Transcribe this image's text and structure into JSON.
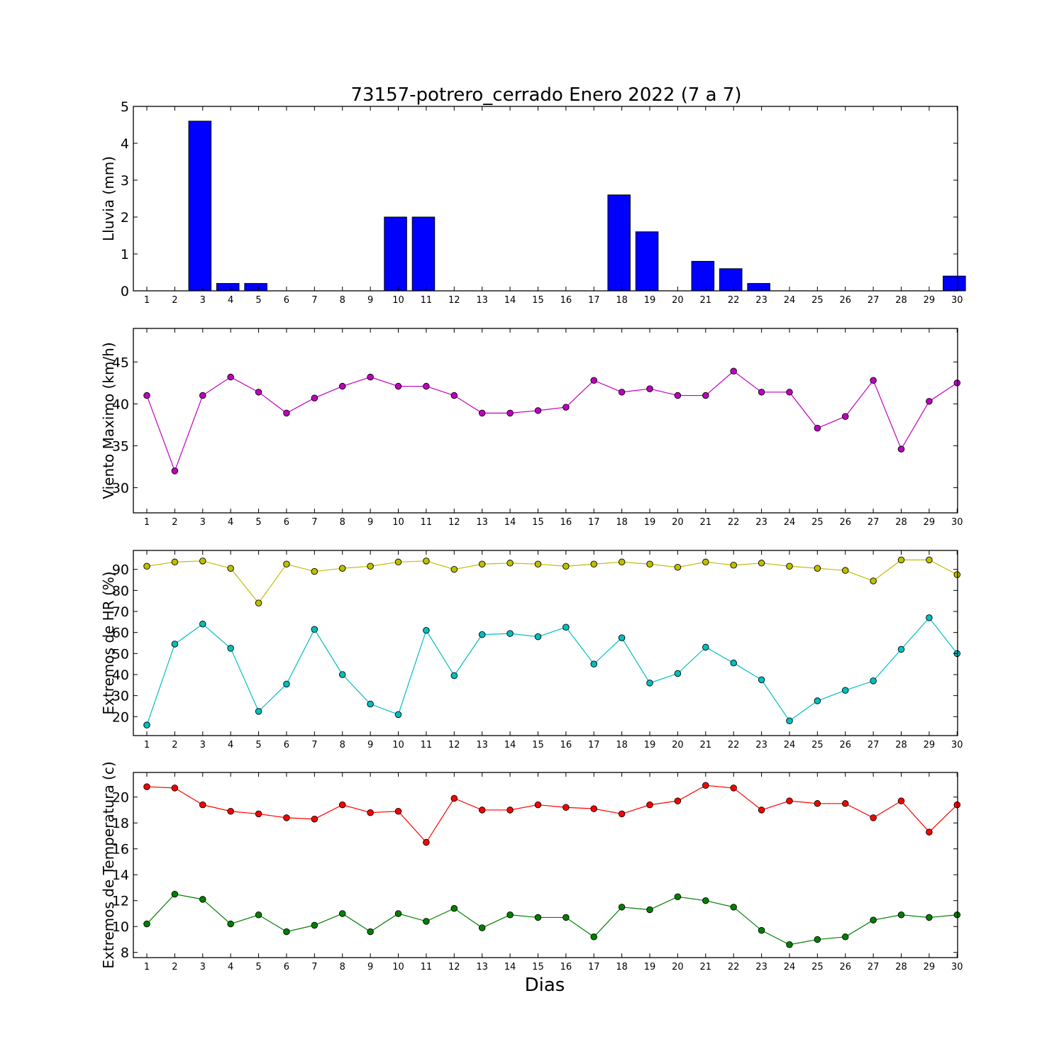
{
  "figure": {
    "title": "73157-potrero_cerrado Enero 2022  (7 a 7)",
    "xlabel": "Dias"
  },
  "chart_data": [
    {
      "type": "bar",
      "ylabel": "Lluvia (mm)",
      "ylim": [
        0,
        5
      ],
      "yticks": [
        0,
        1,
        2,
        3,
        4,
        5
      ],
      "grid": false,
      "x": [
        1,
        2,
        3,
        4,
        5,
        6,
        7,
        8,
        9,
        10,
        11,
        12,
        13,
        14,
        15,
        16,
        17,
        18,
        19,
        20,
        21,
        22,
        23,
        24,
        25,
        26,
        27,
        28,
        29,
        30
      ],
      "series": [
        {
          "color": "#0000ff",
          "values": [
            0,
            0,
            4.6,
            0.2,
            0.2,
            0,
            0,
            0,
            0,
            2.0,
            2.0,
            0,
            0,
            0,
            0,
            0,
            0,
            2.6,
            1.6,
            0,
            0.8,
            0.6,
            0.2,
            0,
            0,
            0,
            0,
            0,
            0,
            0.4
          ]
        }
      ]
    },
    {
      "type": "line",
      "ylabel": "Viento Maximo (km/h)",
      "ylim": [
        27,
        49
      ],
      "yticks": [
        30,
        35,
        40,
        45
      ],
      "grid": false,
      "x": [
        1,
        2,
        3,
        4,
        5,
        6,
        7,
        8,
        9,
        10,
        11,
        12,
        13,
        14,
        15,
        16,
        17,
        18,
        19,
        20,
        21,
        22,
        23,
        24,
        25,
        26,
        27,
        28,
        29,
        30
      ],
      "series": [
        {
          "color": "#bf00bf",
          "values": [
            41.0,
            32.0,
            41.0,
            43.2,
            41.4,
            38.9,
            40.7,
            42.1,
            43.2,
            42.1,
            42.1,
            41.0,
            38.9,
            38.9,
            39.2,
            39.6,
            42.8,
            41.4,
            41.8,
            41.0,
            41.0,
            43.9,
            41.4,
            41.4,
            37.1,
            38.5,
            42.8,
            34.6,
            40.3,
            42.5
          ]
        }
      ]
    },
    {
      "type": "line",
      "ylabel": "Extremos de HR (%)",
      "ylim": [
        11,
        99
      ],
      "yticks": [
        20,
        30,
        40,
        50,
        60,
        70,
        80,
        90
      ],
      "grid": false,
      "x": [
        1,
        2,
        3,
        4,
        5,
        6,
        7,
        8,
        9,
        10,
        11,
        12,
        13,
        14,
        15,
        16,
        17,
        18,
        19,
        20,
        21,
        22,
        23,
        24,
        25,
        26,
        27,
        28,
        29,
        30
      ],
      "series": [
        {
          "color": "#bfbf00",
          "values": [
            91.5,
            93.5,
            94.0,
            90.5,
            74.0,
            92.5,
            89.0,
            90.5,
            91.5,
            93.5,
            94.0,
            90.0,
            92.5,
            93.0,
            92.5,
            91.5,
            92.5,
            93.5,
            92.5,
            91.0,
            93.5,
            92.0,
            93.0,
            91.5,
            90.5,
            89.5,
            84.5,
            94.5,
            94.5,
            87.5
          ]
        },
        {
          "color": "#00bfbf",
          "values": [
            16.0,
            54.5,
            64.0,
            52.5,
            22.5,
            35.5,
            61.5,
            40.0,
            26.0,
            21.0,
            61.0,
            39.5,
            59.0,
            59.5,
            58.0,
            62.5,
            45.0,
            57.5,
            36.0,
            40.5,
            53.0,
            45.5,
            37.5,
            18.0,
            27.5,
            32.5,
            37.0,
            52.0,
            67.0,
            50.0
          ]
        }
      ]
    },
    {
      "type": "line",
      "ylabel": "Extremos de Temperatura (c)",
      "ylim": [
        7.6,
        21.9
      ],
      "yticks": [
        8,
        10,
        12,
        14,
        16,
        18,
        20
      ],
      "grid": false,
      "x": [
        1,
        2,
        3,
        4,
        5,
        6,
        7,
        8,
        9,
        10,
        11,
        12,
        13,
        14,
        15,
        16,
        17,
        18,
        19,
        20,
        21,
        22,
        23,
        24,
        25,
        26,
        27,
        28,
        29,
        30
      ],
      "series": [
        {
          "color": "#ff0000",
          "values": [
            20.8,
            20.7,
            19.4,
            18.9,
            18.7,
            18.4,
            18.3,
            19.4,
            18.8,
            18.9,
            16.5,
            19.9,
            19.0,
            19.0,
            19.4,
            19.2,
            19.1,
            18.7,
            19.4,
            19.7,
            20.9,
            20.7,
            19.0,
            19.7,
            19.5,
            19.5,
            18.4,
            19.7,
            17.3,
            19.4
          ]
        },
        {
          "color": "#008000",
          "values": [
            10.2,
            12.5,
            12.1,
            10.2,
            10.9,
            9.6,
            10.1,
            11.0,
            9.6,
            11.0,
            10.4,
            11.4,
            9.9,
            10.9,
            10.7,
            10.7,
            9.2,
            11.5,
            11.3,
            12.3,
            12.0,
            11.5,
            9.7,
            8.6,
            9.0,
            9.2,
            10.5,
            10.9,
            10.7,
            10.9
          ]
        }
      ]
    }
  ]
}
